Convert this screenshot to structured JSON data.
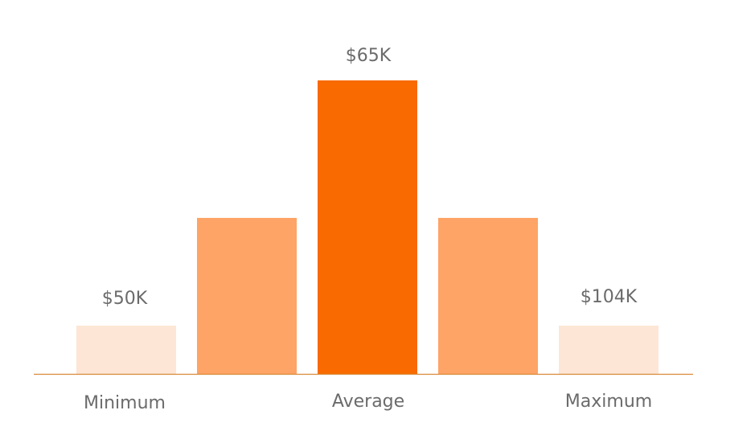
{
  "markers": [
    {
      "label": "Minimum",
      "amount": "$50K"
    },
    {
      "label": "Average",
      "amount": "$65K"
    },
    {
      "label": "Maximum",
      "amount": "$104K"
    }
  ]
}
